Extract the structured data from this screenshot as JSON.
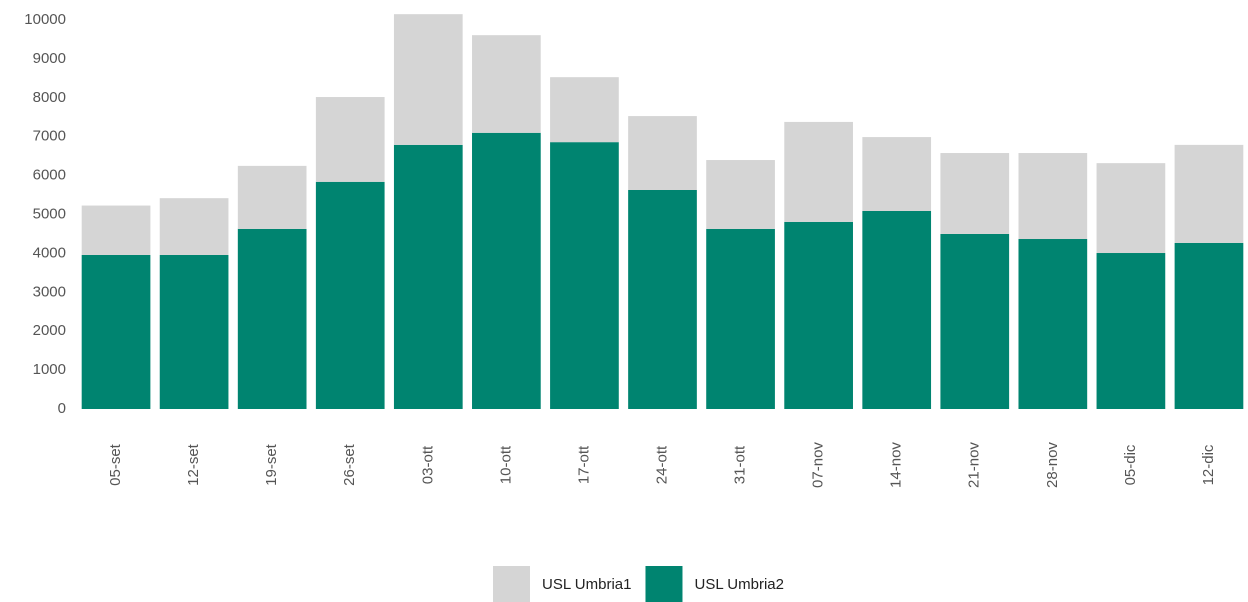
{
  "chart_data": {
    "type": "stacked_bar",
    "categories": [
      "05-set",
      "12-set",
      "19-set",
      "26-set",
      "03-ott",
      "10-ott",
      "17-ott",
      "24-ott",
      "31-ott",
      "07-nov",
      "14-nov",
      "21-nov",
      "28-nov",
      "05-dic",
      "12-dic"
    ],
    "series": [
      {
        "name": "USL Umbria1",
        "color": "#d5d5d5",
        "values": [
          1270,
          1460,
          1620,
          2180,
          3360,
          2510,
          1670,
          1900,
          1770,
          2570,
          1900,
          2080,
          2210,
          2310,
          2520
        ]
      },
      {
        "name": "USL Umbria2",
        "color": "#008470",
        "values": [
          3960,
          3960,
          4630,
          5840,
          6790,
          7100,
          6860,
          5630,
          4630,
          4810,
          5090,
          4500,
          4370,
          4010,
          4270
        ]
      }
    ],
    "ylim": [
      0,
      10000
    ],
    "yticks": [
      0,
      1000,
      2000,
      3000,
      4000,
      5000,
      6000,
      7000,
      8000,
      9000,
      10000
    ],
    "legend": "bottom"
  }
}
